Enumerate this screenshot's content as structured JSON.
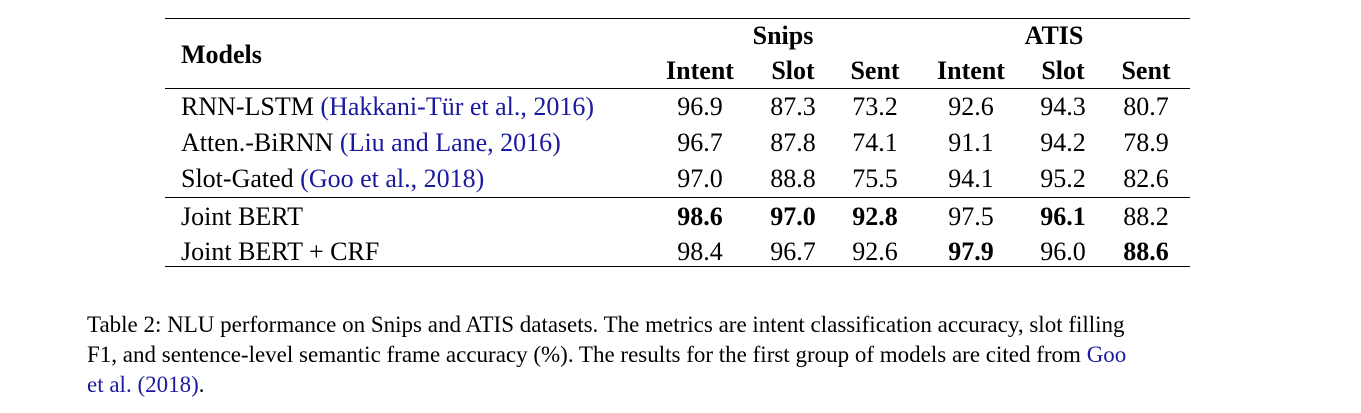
{
  "table": {
    "models_header": "Models",
    "groups": [
      "Snips",
      "ATIS"
    ],
    "subheaders": [
      "Intent",
      "Slot",
      "Sent",
      "Intent",
      "Slot",
      "Sent"
    ],
    "rows": [
      {
        "model": "RNN-LSTM",
        "cite_open": "(",
        "cite": "Hakkani-Tür et al., 2016",
        "cite_close": ")",
        "values": [
          "96.9",
          "87.3",
          "73.2",
          "92.6",
          "94.3",
          "80.7"
        ],
        "bold": [
          false,
          false,
          false,
          false,
          false,
          false
        ]
      },
      {
        "model": "Atten.-BiRNN",
        "cite_open": "(",
        "cite": "Liu and Lane, 2016",
        "cite_close": ")",
        "values": [
          "96.7",
          "87.8",
          "74.1",
          "91.1",
          "94.2",
          "78.9"
        ],
        "bold": [
          false,
          false,
          false,
          false,
          false,
          false
        ]
      },
      {
        "model": "Slot-Gated",
        "cite_open": "(",
        "cite": "Goo et al., 2018",
        "cite_close": ")",
        "values": [
          "97.0",
          "88.8",
          "75.5",
          "94.1",
          "95.2",
          "82.6"
        ],
        "bold": [
          false,
          false,
          false,
          false,
          false,
          false
        ]
      },
      {
        "model": "Joint BERT",
        "cite_open": "",
        "cite": "",
        "cite_close": "",
        "values": [
          "98.6",
          "97.0",
          "92.8",
          "97.5",
          "96.1",
          "88.2"
        ],
        "bold": [
          true,
          true,
          true,
          false,
          true,
          false
        ]
      },
      {
        "model": "Joint BERT + CRF",
        "cite_open": "",
        "cite": "",
        "cite_close": "",
        "values": [
          "98.4",
          "96.7",
          "92.6",
          "97.9",
          "96.0",
          "88.6"
        ],
        "bold": [
          false,
          false,
          false,
          true,
          false,
          true
        ]
      }
    ]
  },
  "caption": {
    "line1": "Table 2: NLU performance on Snips and ATIS datasets. The metrics are intent classification accuracy, slot filling",
    "line2_text": "F1, and sentence-level semantic frame accuracy (%). The results for the first group of models are cited from ",
    "line2_cite": "Goo",
    "line3_cite": "et al.",
    "line3_year": "(2018)",
    "line3_end": "."
  }
}
